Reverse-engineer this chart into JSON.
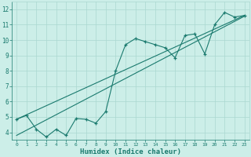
{
  "xlabel": "Humidex (Indice chaleur)",
  "bg_color": "#cceee8",
  "grid_color": "#aad8d0",
  "line_color": "#1a7a6e",
  "xlim": [
    -0.5,
    23.5
  ],
  "ylim": [
    3.5,
    12.5
  ],
  "xticks": [
    0,
    1,
    2,
    3,
    4,
    5,
    6,
    7,
    8,
    9,
    10,
    11,
    12,
    13,
    14,
    15,
    16,
    17,
    18,
    19,
    20,
    21,
    22,
    23
  ],
  "yticks": [
    4,
    5,
    6,
    7,
    8,
    9,
    10,
    11,
    12
  ],
  "data_x": [
    0,
    1,
    2,
    3,
    4,
    5,
    6,
    7,
    8,
    9,
    10,
    11,
    12,
    13,
    14,
    15,
    16,
    17,
    18,
    19,
    20,
    21,
    22,
    23
  ],
  "data_y": [
    4.85,
    5.1,
    4.2,
    3.7,
    4.2,
    3.8,
    4.9,
    4.85,
    4.6,
    5.35,
    8.0,
    9.7,
    10.1,
    9.9,
    9.7,
    9.5,
    8.85,
    10.3,
    10.4,
    9.1,
    11.0,
    11.8,
    11.5,
    11.6
  ],
  "line1_x": [
    0,
    23
  ],
  "line1_y": [
    4.85,
    11.6
  ],
  "line2_x": [
    0,
    23
  ],
  "line2_y": [
    3.8,
    11.55
  ]
}
